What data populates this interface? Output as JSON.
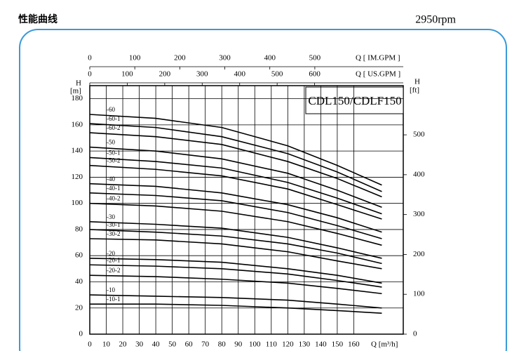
{
  "header": {
    "title": "性能曲线",
    "speed": "2950rpm"
  },
  "chart_data": {
    "type": "line",
    "title": "CDL150/CDLF150",
    "x": [
      0,
      40,
      80,
      120,
      150,
      177
    ],
    "xlim": [
      0,
      190
    ],
    "xticks": [
      0,
      10,
      20,
      30,
      40,
      50,
      60,
      70,
      80,
      90,
      100,
      110,
      120,
      130,
      140,
      150,
      160
    ],
    "xlabel": "Q [m³/h]",
    "ylim": [
      0,
      190
    ],
    "yticks": [
      0,
      20,
      40,
      60,
      80,
      100,
      120,
      140,
      160,
      180
    ],
    "ylabel": "H",
    "ylabel_unit": "[m]",
    "y2lim": [
      0,
      623.4
    ],
    "y2ticks": [
      0,
      100,
      200,
      300,
      400,
      500
    ],
    "y2label": "H",
    "y2label_unit": "[ft]",
    "top_axes": [
      {
        "label": "Q [ IM.GPM ]",
        "xlim": [
          0,
          696.5
        ],
        "xticks": [
          0,
          100,
          200,
          300,
          400,
          500
        ]
      },
      {
        "label": "Q [ US.GPM ]",
        "xlim": [
          0,
          836.6
        ],
        "xticks": [
          0,
          100,
          200,
          300,
          400,
          500,
          600
        ]
      }
    ],
    "grid": true,
    "line_color": "#000000",
    "series": [
      {
        "name": "-60",
        "values": [
          168,
          165,
          158,
          144,
          129,
          114
        ]
      },
      {
        "name": "-60-1",
        "values": [
          161,
          158,
          151,
          138,
          124,
          109
        ]
      },
      {
        "name": "-60-2",
        "values": [
          154,
          151,
          145,
          132,
          119,
          105
        ]
      },
      {
        "name": "-50",
        "values": [
          143,
          140,
          134,
          123,
          110,
          97
        ]
      },
      {
        "name": "-50-1",
        "values": [
          135,
          132,
          127,
          116,
          104,
          92
        ]
      },
      {
        "name": "-50-2",
        "values": [
          129,
          126,
          121,
          111,
          99,
          88
        ]
      },
      {
        "name": "-40",
        "values": [
          115,
          113,
          108,
          99,
          89,
          78
        ]
      },
      {
        "name": "-40-1",
        "values": [
          108,
          106,
          102,
          93,
          83,
          73
        ]
      },
      {
        "name": "-40-2",
        "values": [
          100,
          98,
          94,
          86,
          77,
          68
        ]
      },
      {
        "name": "-30",
        "values": [
          86,
          84,
          81,
          74,
          66,
          58
        ]
      },
      {
        "name": "-30-1",
        "values": [
          80,
          78,
          75,
          69,
          62,
          54
        ]
      },
      {
        "name": "-30-2",
        "values": [
          73,
          72,
          69,
          63,
          56,
          50
        ]
      },
      {
        "name": "-20",
        "values": [
          58,
          57,
          55,
          50,
          45,
          39
        ]
      },
      {
        "name": "-20-1",
        "values": [
          53,
          52,
          50,
          46,
          41,
          36
        ]
      },
      {
        "name": "-20-2",
        "values": [
          45,
          44,
          42,
          39,
          35,
          31
        ]
      },
      {
        "name": "-10",
        "values": [
          30,
          29,
          28,
          26,
          23,
          20
        ]
      },
      {
        "name": "-10-1",
        "values": [
          23,
          23,
          22,
          20,
          18,
          16
        ]
      }
    ]
  }
}
